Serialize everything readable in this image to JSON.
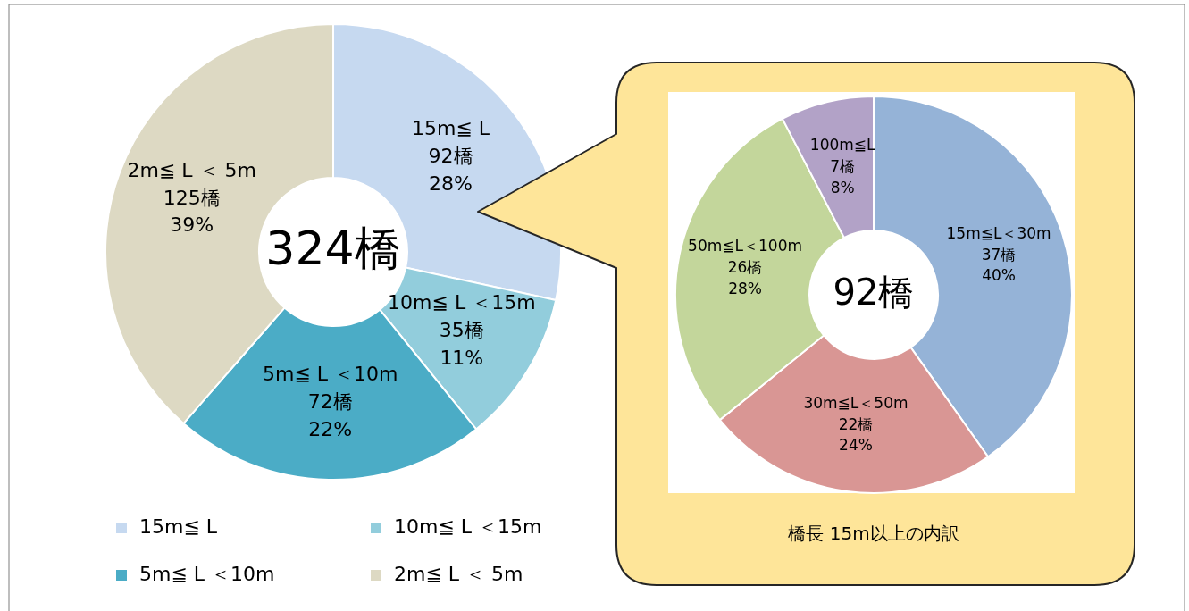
{
  "chart_data": [
    {
      "type": "donut",
      "categories": [
        "15m≦ L",
        "10m≦ L ＜15m",
        "5m≦ L ＜10m",
        "2m≦ L ＜ 5m"
      ],
      "values": [
        92,
        35,
        72,
        125
      ],
      "colors": [
        "#c6d9f0",
        "#92cddc",
        "#4bacc6",
        "#ddd9c3"
      ],
      "value_labels": [
        "92橋\n28%",
        "35橋\n11%",
        "72橋\n22%",
        "125橋\n39%"
      ],
      "annotations": [
        "324橋"
      ],
      "legend": "bottom"
    },
    {
      "type": "donut",
      "title": "橋長 15m以上の内訳",
      "categories": [
        "15m≦L＜30m",
        "30m≦L＜50m",
        "50m≦L＜100m",
        "100m≦L"
      ],
      "values": [
        37,
        22,
        26,
        7
      ],
      "colors": [
        "#95b3d7",
        "#d99694",
        "#c3d69b",
        "#b2a2c7"
      ],
      "value_labels": [
        "37橋\n40%",
        "22橋\n24%",
        "26橋\n28%",
        "7橋\n8%"
      ],
      "annotations": [
        "92橋"
      ],
      "legend": false
    }
  ]
}
